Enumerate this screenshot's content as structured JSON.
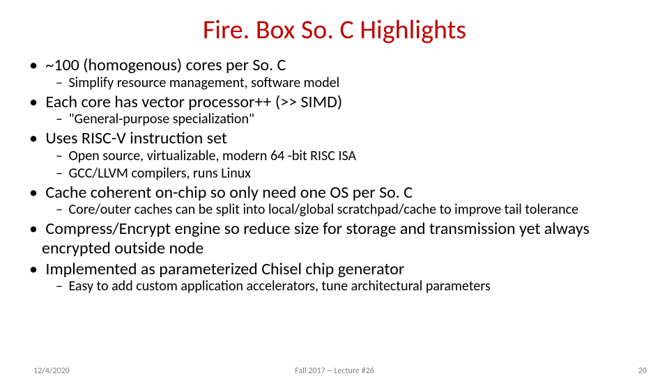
{
  "title": "Fire. Box So. C Highlights",
  "bullets": {
    "b1": "~100 (homogenous) cores per So. C",
    "b1s1": "Simplify resource management, software model",
    "b2": "Each core has vector processor++ (>> SIMD)",
    "b2s1": "\"General-purpose specialization\"",
    "b3": "Uses RISC-V instruction set",
    "b3s1": "Open source, virtualizable, modern 64 -bit RISC ISA",
    "b3s2": "GCC/LLVM compilers, runs Linux",
    "b4": "Cache coherent on-chip so only need one OS per So. C",
    "b4s1": "Core/outer caches can be split into local/global scratchpad/cache to improve tail tolerance",
    "b5": "Compress/Encrypt engine so reduce size for storage and transmission yet always encrypted outside node",
    "b6": "Implemented as parameterized Chisel chip generator",
    "b6s1": "Easy to add custom application accelerators, tune architectural parameters"
  },
  "footer": {
    "date": "12/4/2020",
    "lecture": "Fall 2017 -- Lecture #26",
    "page": "20"
  },
  "style": {
    "title_color": "#c00000",
    "title_fontsize": 38,
    "lvl1_fontsize": 24,
    "lvl2_fontsize": 20,
    "footer_color": "#808080",
    "footer_fontsize": 12,
    "background_color": "#ffffff"
  }
}
